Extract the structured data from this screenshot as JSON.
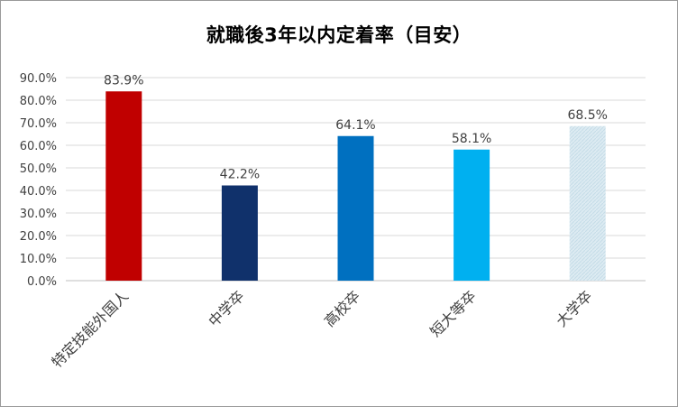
{
  "chart_data": {
    "type": "bar",
    "title": "就職後3年以内定着率（目安）",
    "categories": [
      "特定技能外国人",
      "中学卒",
      "高校卒",
      "短大等卒",
      "大学卒"
    ],
    "values": [
      83.9,
      42.2,
      64.1,
      58.1,
      68.5
    ],
    "value_labels": [
      "83.9%",
      "42.2%",
      "64.1%",
      "58.1%",
      "68.5%"
    ],
    "bar_colors": [
      "#C00000",
      "#10316B",
      "#0070C0",
      "#00B0F0",
      "#DDEBF2"
    ],
    "ylim": [
      0,
      90
    ],
    "yticks": [
      0,
      10,
      20,
      30,
      40,
      50,
      60,
      70,
      80,
      90
    ],
    "ytick_labels": [
      "0.0%",
      "10.0%",
      "20.0%",
      "30.0%",
      "40.0%",
      "50.0%",
      "60.0%",
      "70.0%",
      "80.0%",
      "90.0%"
    ],
    "grid": true,
    "legend": "none",
    "xlabel": "",
    "ylabel": ""
  }
}
